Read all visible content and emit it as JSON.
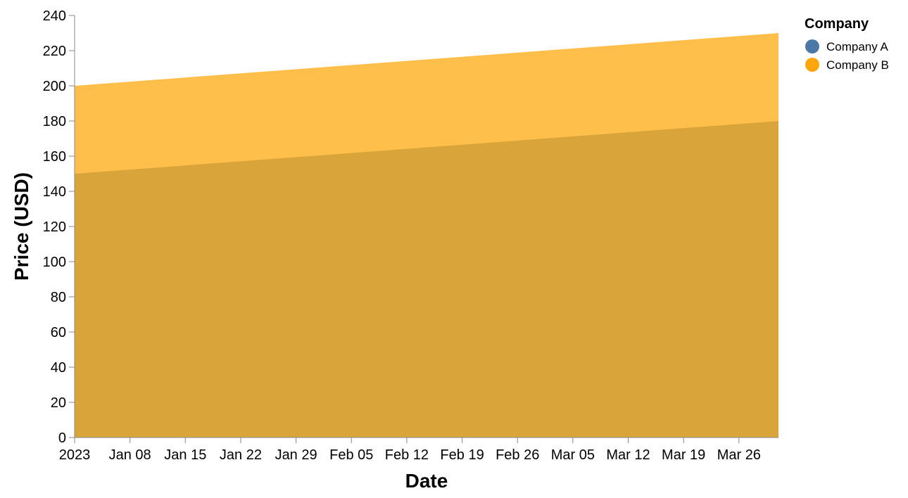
{
  "chart_data": {
    "type": "area",
    "xlabel": "Date",
    "ylabel": "Price (USD)",
    "ylim": [
      0,
      240
    ],
    "yticks": [
      0,
      20,
      40,
      60,
      80,
      100,
      120,
      140,
      160,
      180,
      200,
      220,
      240
    ],
    "xlim": [
      "2023-01-01",
      "2023-03-31"
    ],
    "xticks": [
      {
        "date": "2023-01-01",
        "label": "2023"
      },
      {
        "date": "2023-01-08",
        "label": "Jan 08"
      },
      {
        "date": "2023-01-15",
        "label": "Jan 15"
      },
      {
        "date": "2023-01-22",
        "label": "Jan 22"
      },
      {
        "date": "2023-01-29",
        "label": "Jan 29"
      },
      {
        "date": "2023-02-05",
        "label": "Feb 05"
      },
      {
        "date": "2023-02-12",
        "label": "Feb 12"
      },
      {
        "date": "2023-02-19",
        "label": "Feb 19"
      },
      {
        "date": "2023-02-26",
        "label": "Feb 26"
      },
      {
        "date": "2023-03-05",
        "label": "Mar 05"
      },
      {
        "date": "2023-03-12",
        "label": "Mar 12"
      },
      {
        "date": "2023-03-19",
        "label": "Mar 19"
      },
      {
        "date": "2023-03-26",
        "label": "Mar 26"
      }
    ],
    "grid": false,
    "legend": {
      "title": "Company",
      "placement": "top-right"
    },
    "series": [
      {
        "name": "Company A",
        "color": "#4c78a8",
        "x": [
          "2023-01-01",
          "2023-03-31"
        ],
        "values": [
          150,
          180
        ]
      },
      {
        "name": "Company B",
        "color": "#ffa60d",
        "x": [
          "2023-01-01",
          "2023-03-31"
        ],
        "values": [
          200,
          230
        ]
      }
    ],
    "overlap_color": "#d9a53a",
    "top_area_color": "#ffbf4a"
  }
}
